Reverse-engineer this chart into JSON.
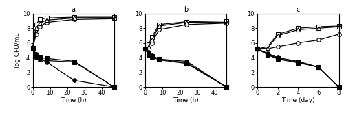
{
  "panels": [
    {
      "label": "a",
      "xlabel": "Time (h)",
      "xdata": [
        0,
        2,
        4,
        8,
        24,
        47
      ],
      "xticks": [
        0,
        10,
        20,
        30,
        40
      ],
      "xlim": [
        0,
        47
      ],
      "series": [
        {
          "name": "open_circle",
          "marker": "o",
          "filled": false,
          "y": [
            5.3,
            7.2,
            8.2,
            8.8,
            9.2,
            9.3
          ]
        },
        {
          "name": "open_square",
          "marker": "s",
          "filled": false,
          "y": [
            5.3,
            8.5,
            9.2,
            9.4,
            9.5,
            9.5
          ]
        },
        {
          "name": "open_triangle",
          "marker": "^",
          "filled": false,
          "y": [
            5.3,
            8.0,
            8.7,
            9.1,
            9.4,
            9.4
          ]
        },
        {
          "name": "fill_circle",
          "marker": "o",
          "filled": true,
          "y": [
            5.3,
            4.5,
            3.9,
            3.4,
            0.9,
            0.0
          ]
        },
        {
          "name": "fill_square",
          "marker": "s",
          "filled": true,
          "y": [
            5.3,
            4.2,
            4.0,
            3.9,
            3.5,
            0.0
          ]
        },
        {
          "name": "fill_triangle",
          "marker": "^",
          "filled": true,
          "y": [
            5.3,
            4.0,
            3.8,
            3.6,
            3.4,
            0.0
          ]
        }
      ]
    },
    {
      "label": "b",
      "xlabel": "Time (h)",
      "xdata": [
        0,
        2,
        4,
        8,
        24,
        47
      ],
      "xticks": [
        0,
        10,
        20,
        30,
        40
      ],
      "xlim": [
        0,
        47
      ],
      "series": [
        {
          "name": "open_circle",
          "marker": "o",
          "filled": false,
          "y": [
            5.2,
            5.5,
            6.0,
            7.8,
            8.5,
            8.7
          ]
        },
        {
          "name": "open_square",
          "marker": "s",
          "filled": false,
          "y": [
            5.2,
            5.8,
            6.8,
            8.5,
            8.9,
            9.0
          ]
        },
        {
          "name": "open_triangle",
          "marker": "^",
          "filled": false,
          "y": [
            5.2,
            5.5,
            6.4,
            8.3,
            8.8,
            8.8
          ]
        },
        {
          "name": "fill_circle",
          "marker": "o",
          "filled": true,
          "y": [
            5.2,
            4.8,
            4.3,
            3.8,
            3.5,
            0.0
          ]
        },
        {
          "name": "fill_square",
          "marker": "s",
          "filled": true,
          "y": [
            5.2,
            4.5,
            4.2,
            3.8,
            3.3,
            0.0
          ]
        },
        {
          "name": "fill_triangle",
          "marker": "^",
          "filled": true,
          "y": [
            5.2,
            4.4,
            4.1,
            3.7,
            3.2,
            0.0
          ]
        }
      ]
    },
    {
      "label": "c",
      "xlabel": "Time (day)",
      "xdata": [
        0,
        1,
        2,
        4,
        6,
        8
      ],
      "xticks": [
        0,
        2,
        4,
        6,
        8
      ],
      "xlim": [
        0,
        8
      ],
      "series": [
        {
          "name": "open_circle",
          "marker": "o",
          "filled": false,
          "y": [
            5.2,
            5.2,
            5.5,
            6.0,
            6.4,
            7.2
          ]
        },
        {
          "name": "open_square",
          "marker": "s",
          "filled": false,
          "y": [
            5.2,
            5.5,
            7.2,
            8.0,
            8.2,
            8.3
          ]
        },
        {
          "name": "open_triangle",
          "marker": "^",
          "filled": false,
          "y": [
            5.2,
            5.3,
            7.0,
            7.8,
            8.0,
            8.2
          ]
        },
        {
          "name": "fill_circle",
          "marker": "o",
          "filled": true,
          "y": [
            5.2,
            4.6,
            4.0,
            3.5,
            2.7,
            0.0
          ]
        },
        {
          "name": "fill_square",
          "marker": "s",
          "filled": true,
          "y": [
            5.2,
            4.5,
            3.9,
            3.4,
            2.7,
            0.0
          ]
        },
        {
          "name": "fill_triangle",
          "marker": "^",
          "filled": true,
          "y": [
            5.2,
            4.4,
            3.8,
            3.3,
            2.7,
            0.0
          ]
        }
      ]
    }
  ],
  "ylim": [
    0,
    10
  ],
  "yticks": [
    0,
    2,
    4,
    6,
    8,
    10
  ],
  "ylabel": "log CFU/mL",
  "color": "#000000",
  "linewidth": 0.9,
  "markersize": 4.0,
  "markeredgewidth": 0.8
}
